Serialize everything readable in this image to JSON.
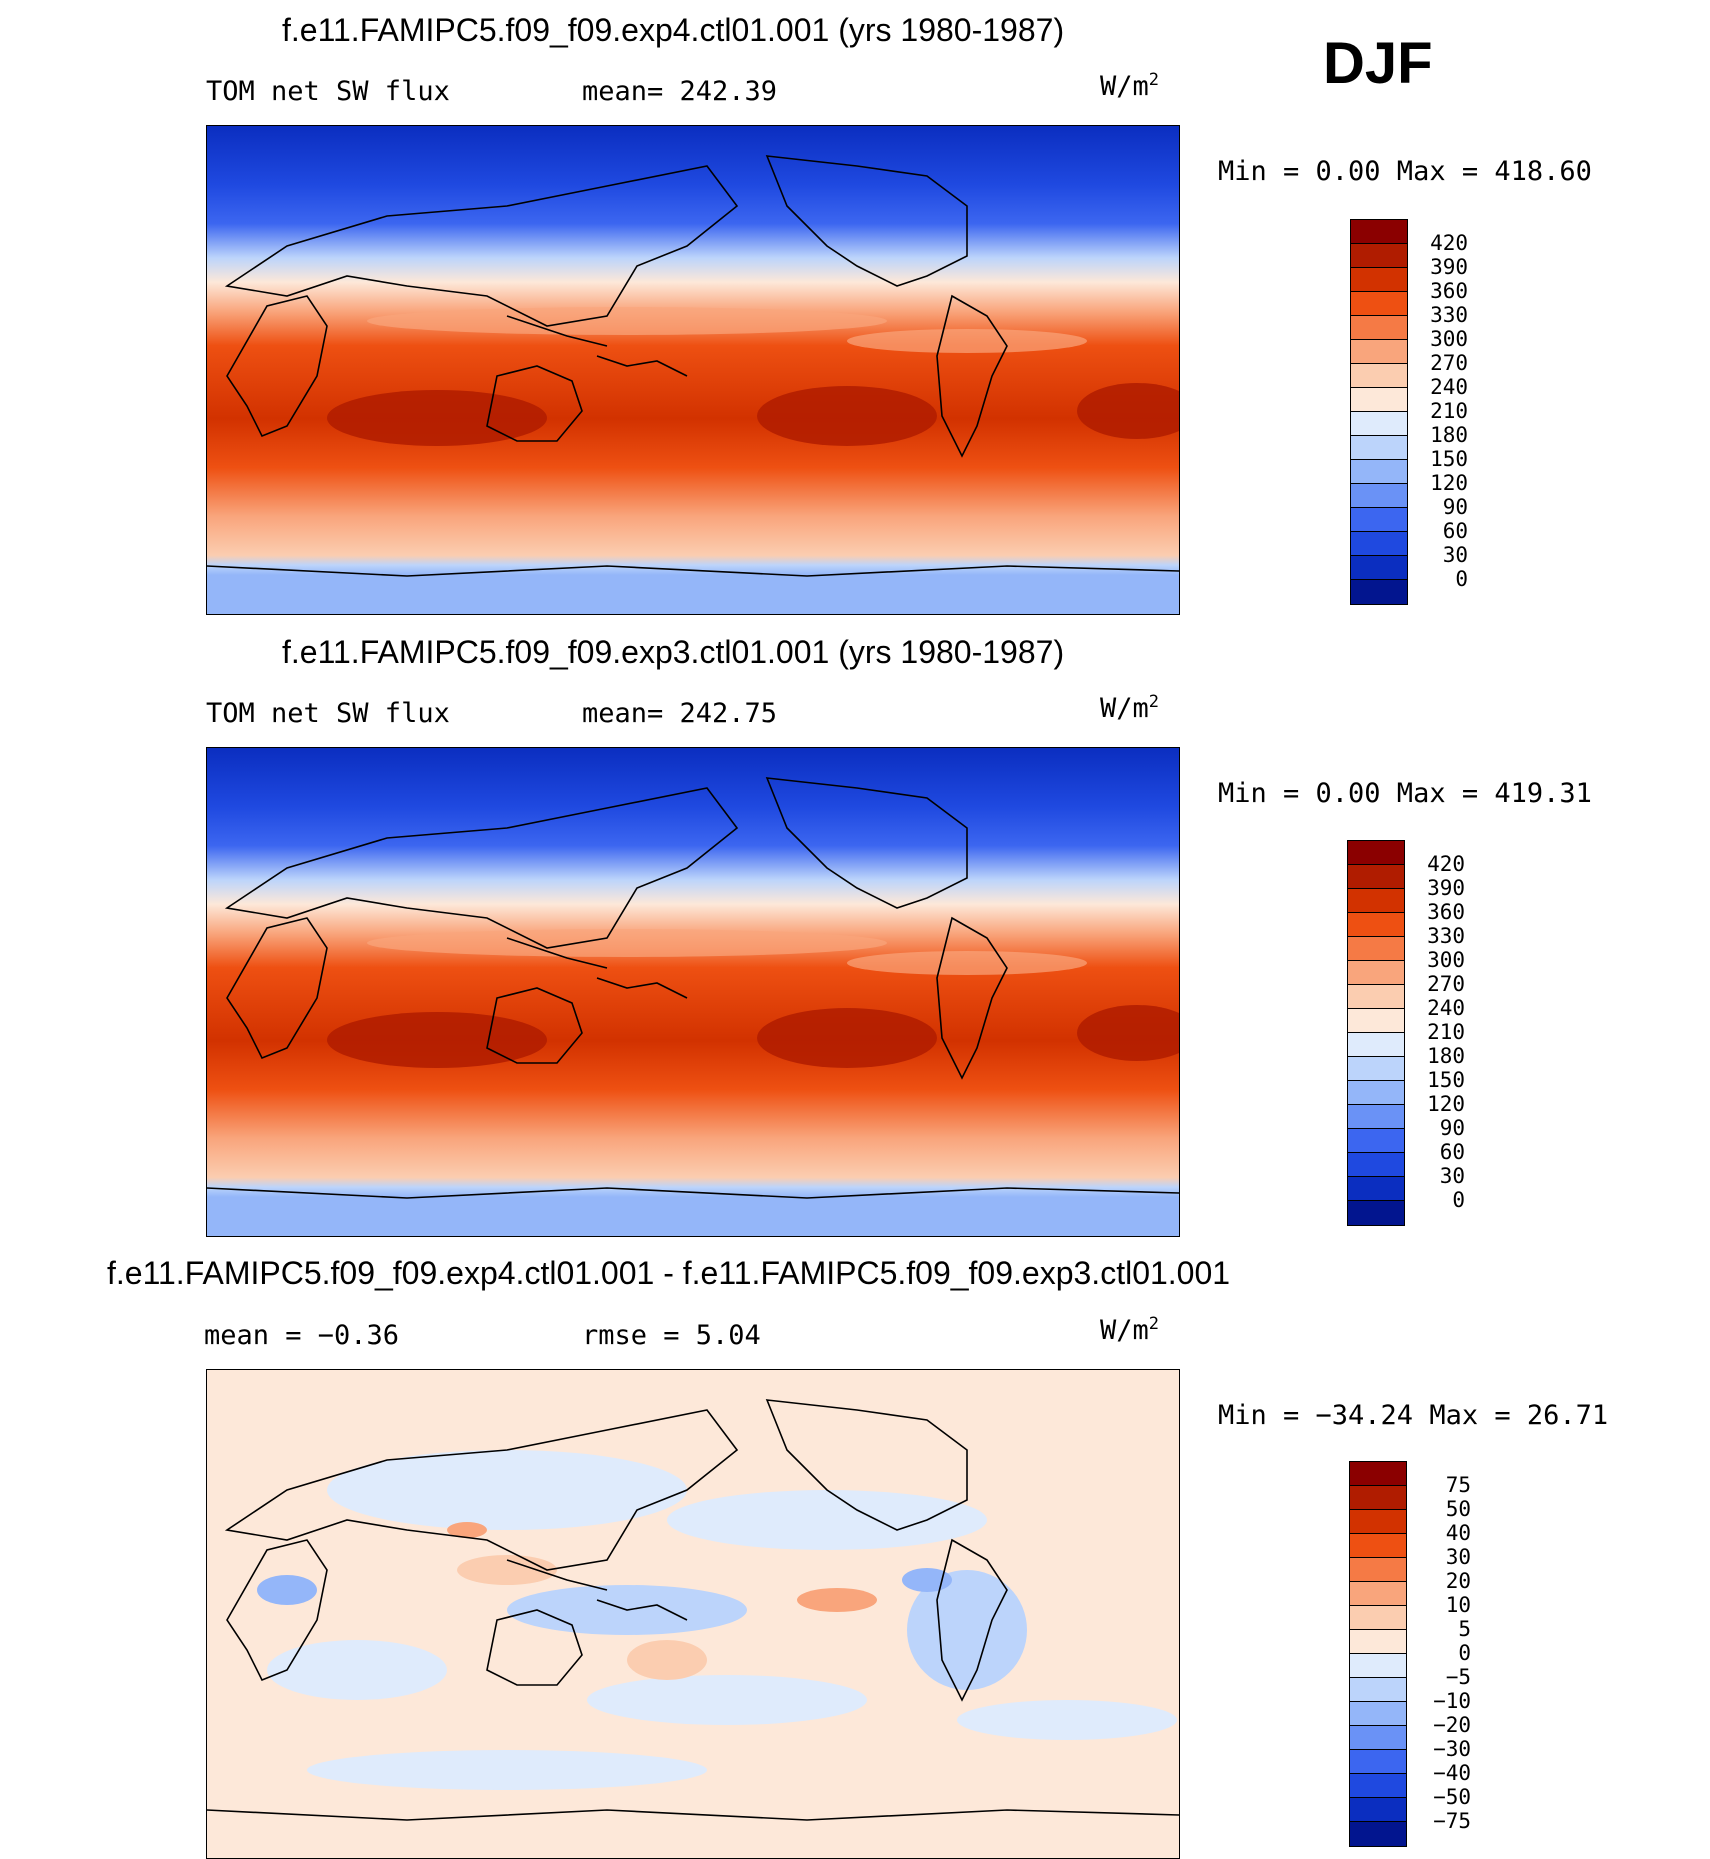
{
  "season": "DJF",
  "panels": [
    {
      "title": "f.e11.FAMIPC5.f09_f09.exp4.ctl01.001 (yrs 1980-1987)",
      "variable": "TOM net SW flux",
      "stat": "mean= 242.39",
      "units": "W/m",
      "units_exp": "2",
      "minmax": "Min =    0.00 Max = 418.60"
    },
    {
      "title": "f.e11.FAMIPC5.f09_f09.exp3.ctl01.001 (yrs 1980-1987)",
      "variable": "TOM net SW flux",
      "stat": "mean= 242.75",
      "units": "W/m",
      "units_exp": "2",
      "minmax": "Min =    0.00 Max = 419.31"
    },
    {
      "title": "f.e11.FAMIPC5.f09_f09.exp4.ctl01.001 - f.e11.FAMIPC5.f09_f09.exp3.ctl01.001",
      "variable": "mean =   −0.36",
      "stat": "rmse =    5.04",
      "units": "W/m",
      "units_exp": "2",
      "minmax": "Min = −34.24 Max =  26.71"
    }
  ],
  "colorbars": {
    "absolute": {
      "colors": [
        "#8b0000",
        "#b01c00",
        "#d23200",
        "#ee5012",
        "#f57a45",
        "#f9a57c",
        "#fbcdb0",
        "#fde8d9",
        "#dfebfc",
        "#bcd4fb",
        "#94b6f9",
        "#6a92f6",
        "#3c66f0",
        "#1f49e0",
        "#0b2ec0",
        "#02158f"
      ],
      "labels": [
        "420",
        "390",
        "360",
        "330",
        "300",
        "270",
        "240",
        "210",
        "180",
        "150",
        "120",
        "90",
        "60",
        "30",
        "0"
      ]
    },
    "difference": {
      "colors": [
        "#8b0000",
        "#b01c00",
        "#d23200",
        "#ee5012",
        "#f57a45",
        "#f9a57c",
        "#fbcdb0",
        "#fde8d9",
        "#dfebfc",
        "#bcd4fb",
        "#94b6f9",
        "#6a92f6",
        "#3c66f0",
        "#1f49e0",
        "#0b2ec0",
        "#02158f"
      ],
      "labels": [
        "75",
        "50",
        "40",
        "30",
        "20",
        "10",
        "5",
        "0",
        "−5",
        "−10",
        "−20",
        "−30",
        "−40",
        "−50",
        "−75"
      ]
    }
  }
}
